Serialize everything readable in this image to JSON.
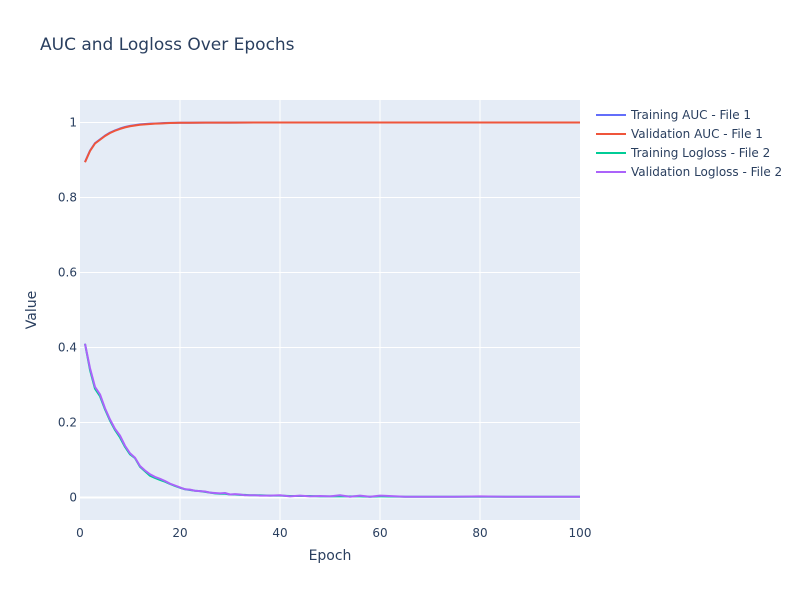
{
  "chart_data": {
    "type": "line",
    "title": "AUC and Logloss Over Epochs",
    "xlabel": "Epoch",
    "ylabel": "Value",
    "xlim": [
      0,
      100
    ],
    "ylim": [
      -0.06,
      1.06
    ],
    "x_ticks": [
      0,
      20,
      40,
      60,
      80,
      100
    ],
    "y_ticks": [
      0,
      0.2,
      0.4,
      0.6,
      0.8,
      1
    ],
    "grid": true,
    "legend_position": "top-right",
    "series": [
      {
        "name": "Training AUC - File 1",
        "color": "#636efa",
        "x": [
          1,
          2,
          3,
          4,
          5,
          6,
          7,
          8,
          9,
          10,
          11,
          12,
          13,
          14,
          15,
          16,
          17,
          18,
          19,
          20,
          22,
          25,
          30,
          35,
          40,
          50,
          60,
          70,
          80,
          90,
          100
        ],
        "y": [
          0.895,
          0.925,
          0.945,
          0.955,
          0.965,
          0.973,
          0.979,
          0.984,
          0.988,
          0.991,
          0.993,
          0.995,
          0.996,
          0.997,
          0.9975,
          0.998,
          0.9985,
          0.999,
          0.999,
          0.9993,
          0.9995,
          0.9997,
          0.9998,
          0.9999,
          0.9999,
          1.0,
          1.0,
          1.0,
          1.0,
          1.0,
          1.0
        ]
      },
      {
        "name": "Validation AUC - File 1",
        "color": "#ef553b",
        "x": [
          1,
          2,
          3,
          4,
          5,
          6,
          7,
          8,
          9,
          10,
          11,
          12,
          13,
          14,
          15,
          16,
          17,
          18,
          19,
          20,
          22,
          25,
          30,
          35,
          40,
          50,
          60,
          70,
          80,
          90,
          100
        ],
        "y": [
          0.894,
          0.924,
          0.944,
          0.954,
          0.964,
          0.972,
          0.978,
          0.983,
          0.987,
          0.99,
          0.992,
          0.994,
          0.995,
          0.996,
          0.997,
          0.9975,
          0.998,
          0.9985,
          0.999,
          0.9992,
          0.9994,
          0.9996,
          0.9998,
          0.9999,
          0.9999,
          1.0,
          1.0,
          1.0,
          1.0,
          1.0,
          1.0
        ]
      },
      {
        "name": "Training Logloss - File 2",
        "color": "#00cc96",
        "x": [
          1,
          2,
          3,
          4,
          5,
          6,
          7,
          8,
          9,
          10,
          11,
          12,
          13,
          14,
          15,
          16,
          17,
          18,
          19,
          20,
          21,
          22,
          23,
          24,
          25,
          26,
          27,
          28,
          29,
          30,
          31,
          32,
          33,
          34,
          35,
          36,
          38,
          40,
          42,
          44,
          46,
          48,
          50,
          52,
          54,
          56,
          58,
          60,
          65,
          70,
          75,
          80,
          85,
          90,
          95,
          100
        ],
        "y": [
          0.41,
          0.34,
          0.29,
          0.27,
          0.235,
          0.205,
          0.18,
          0.16,
          0.135,
          0.115,
          0.105,
          0.082,
          0.07,
          0.058,
          0.052,
          0.047,
          0.042,
          0.036,
          0.031,
          0.026,
          0.022,
          0.02,
          0.018,
          0.017,
          0.015,
          0.013,
          0.011,
          0.01,
          0.01,
          0.008,
          0.008,
          0.007,
          0.007,
          0.006,
          0.006,
          0.006,
          0.005,
          0.005,
          0.004,
          0.004,
          0.004,
          0.003,
          0.003,
          0.003,
          0.003,
          0.003,
          0.002,
          0.003,
          0.002,
          0.002,
          0.002,
          0.002,
          0.002,
          0.002,
          0.002,
          0.002
        ]
      },
      {
        "name": "Validation Logloss - File 2",
        "color": "#ab63fa",
        "x": [
          1,
          2,
          3,
          4,
          5,
          6,
          7,
          8,
          9,
          10,
          11,
          12,
          13,
          14,
          15,
          16,
          17,
          18,
          19,
          20,
          21,
          22,
          23,
          24,
          25,
          26,
          27,
          28,
          29,
          30,
          31,
          32,
          33,
          34,
          35,
          36,
          38,
          40,
          42,
          44,
          46,
          48,
          50,
          52,
          54,
          56,
          58,
          60,
          65,
          70,
          75,
          80,
          85,
          90,
          95,
          100
        ],
        "y": [
          0.41,
          0.345,
          0.295,
          0.275,
          0.238,
          0.208,
          0.183,
          0.165,
          0.138,
          0.118,
          0.106,
          0.084,
          0.072,
          0.062,
          0.055,
          0.05,
          0.044,
          0.037,
          0.032,
          0.027,
          0.022,
          0.021,
          0.018,
          0.017,
          0.016,
          0.013,
          0.012,
          0.011,
          0.012,
          0.008,
          0.009,
          0.008,
          0.006,
          0.006,
          0.006,
          0.005,
          0.005,
          0.006,
          0.003,
          0.005,
          0.003,
          0.004,
          0.003,
          0.006,
          0.002,
          0.005,
          0.002,
          0.005,
          0.002,
          0.002,
          0.002,
          0.003,
          0.002,
          0.002,
          0.002,
          0.002
        ]
      }
    ]
  }
}
